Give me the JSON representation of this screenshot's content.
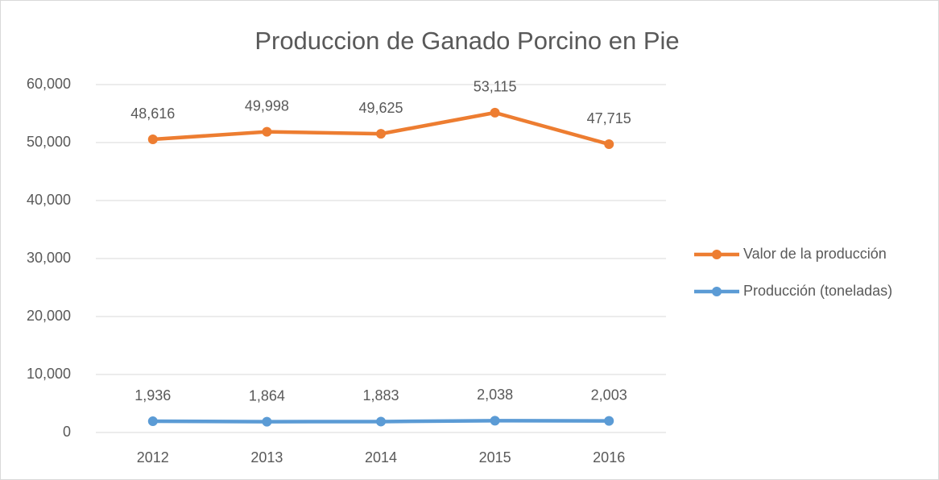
{
  "chart_data": {
    "type": "line",
    "stacked": true,
    "title": "Produccion de Ganado Porcino en Pie",
    "categories": [
      "2012",
      "2013",
      "2014",
      "2015",
      "2016"
    ],
    "series": [
      {
        "name": "Valor de la producción",
        "color": "#ed7d31",
        "values": [
          48616,
          49998,
          49625,
          53115,
          47715
        ],
        "value_labels": [
          "48,616",
          "49,998",
          "49,625",
          "53,115",
          "47,715"
        ]
      },
      {
        "name": "Producción (toneladas)",
        "color": "#5b9bd5",
        "values": [
          1936,
          1864,
          1883,
          2038,
          2003
        ],
        "value_labels": [
          "1,936",
          "1,864",
          "1,883",
          "2,038",
          "2,003"
        ]
      }
    ],
    "ylim": [
      0,
      60000
    ],
    "yticks": [
      0,
      {
        "value": 10000,
        "label": "10,000"
      },
      {
        "value": 20000,
        "label": "20,000"
      },
      {
        "value": 30000,
        "label": "30,000"
      },
      {
        "value": 40000,
        "label": "40,000"
      },
      {
        "value": 50000,
        "label": "50,000"
      },
      {
        "value": 60000,
        "label": "60,000"
      }
    ],
    "grid": true,
    "legend": "right"
  }
}
